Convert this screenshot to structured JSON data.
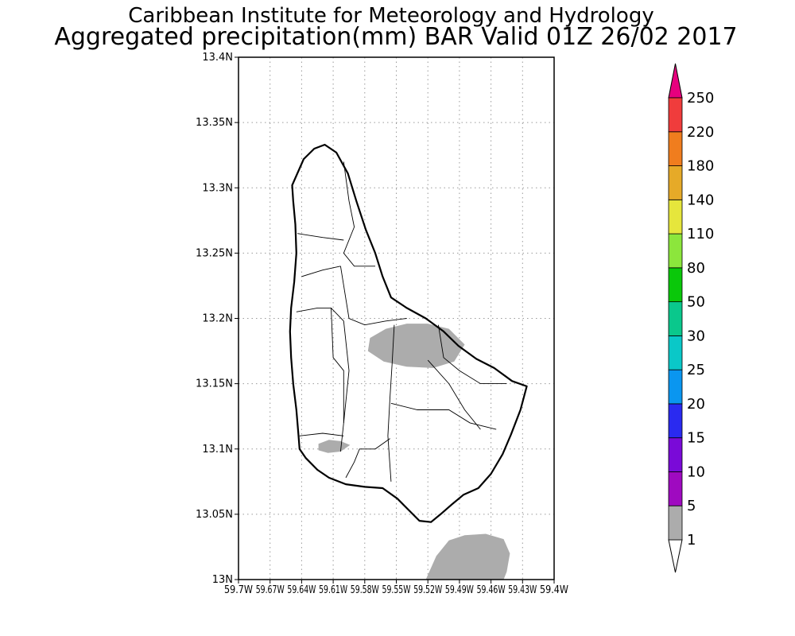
{
  "header": {
    "institution": "Caribbean Institute for Meteorology and Hydrology",
    "product": "Aggregated precipitation(mm) BAR Valid 01Z 26/02 2017"
  },
  "map": {
    "lon_range": [
      -59.7,
      -59.4
    ],
    "lat_range": [
      13.0,
      13.4
    ],
    "grid": true,
    "y_ticks": [
      {
        "value": 13.4,
        "label": "13.4N"
      },
      {
        "value": 13.35,
        "label": "13.35N"
      },
      {
        "value": 13.3,
        "label": "13.3N"
      },
      {
        "value": 13.25,
        "label": "13.25N"
      },
      {
        "value": 13.2,
        "label": "13.2N"
      },
      {
        "value": 13.15,
        "label": "13.15N"
      },
      {
        "value": 13.1,
        "label": "13.1N"
      },
      {
        "value": 13.05,
        "label": "13.05N"
      },
      {
        "value": 13.0,
        "label": "13N"
      }
    ],
    "x_ticks": [
      {
        "value": -59.7,
        "label": "59.7W"
      },
      {
        "value": -59.67,
        "label": "59.67W"
      },
      {
        "value": -59.64,
        "label": "59.64W"
      },
      {
        "value": -59.61,
        "label": "59.61W"
      },
      {
        "value": -59.58,
        "label": "59.58W"
      },
      {
        "value": -59.55,
        "label": "59.55W"
      },
      {
        "value": -59.52,
        "label": "59.52W"
      },
      {
        "value": -59.49,
        "label": "59.49W"
      },
      {
        "value": -59.46,
        "label": "59.46W"
      },
      {
        "value": -59.43,
        "label": "59.43W"
      },
      {
        "value": -59.4,
        "label": "59.4W"
      }
    ],
    "island_outline": [
      [
        -59.649,
        13.302
      ],
      [
        -59.638,
        13.322
      ],
      [
        -59.628,
        13.33
      ],
      [
        -59.618,
        13.333
      ],
      [
        -59.607,
        13.327
      ],
      [
        -59.596,
        13.311
      ],
      [
        -59.588,
        13.29
      ],
      [
        -59.579,
        13.268
      ],
      [
        -59.57,
        13.25
      ],
      [
        -59.563,
        13.232
      ],
      [
        -59.555,
        13.216
      ],
      [
        -59.54,
        13.208
      ],
      [
        -59.522,
        13.2
      ],
      [
        -59.505,
        13.19
      ],
      [
        -59.491,
        13.179
      ],
      [
        -59.474,
        13.169
      ],
      [
        -59.457,
        13.162
      ],
      [
        -59.44,
        13.152
      ],
      [
        -59.426,
        13.148
      ],
      [
        -59.432,
        13.13
      ],
      [
        -59.441,
        13.111
      ],
      [
        -59.449,
        13.096
      ],
      [
        -59.46,
        13.081
      ],
      [
        -59.472,
        13.07
      ],
      [
        -59.486,
        13.065
      ],
      [
        -59.498,
        13.057
      ],
      [
        -59.508,
        13.05
      ],
      [
        -59.517,
        13.044
      ],
      [
        -59.528,
        13.045
      ],
      [
        -59.538,
        13.053
      ],
      [
        -59.549,
        13.062
      ],
      [
        -59.563,
        13.07
      ],
      [
        -59.58,
        13.071
      ],
      [
        -59.598,
        13.073
      ],
      [
        -59.614,
        13.078
      ],
      [
        -59.625,
        13.084
      ],
      [
        -59.636,
        13.093
      ],
      [
        -59.642,
        13.1
      ],
      [
        -59.643,
        13.111
      ],
      [
        -59.645,
        13.13
      ],
      [
        -59.648,
        13.15
      ],
      [
        -59.65,
        13.17
      ],
      [
        -59.651,
        13.19
      ],
      [
        -59.65,
        13.208
      ],
      [
        -59.647,
        13.228
      ],
      [
        -59.645,
        13.25
      ],
      [
        -59.646,
        13.272
      ],
      [
        -59.648,
        13.29
      ]
    ],
    "parish_lines": [
      [
        [
          -59.6,
          13.32
        ],
        [
          -59.595,
          13.29
        ],
        [
          -59.59,
          13.27
        ],
        [
          -59.6,
          13.25
        ],
        [
          -59.59,
          13.24
        ],
        [
          -59.57,
          13.24
        ]
      ],
      [
        [
          -59.644,
          13.265
        ],
        [
          -59.62,
          13.262
        ],
        [
          -59.6,
          13.26
        ]
      ],
      [
        [
          -59.64,
          13.232
        ],
        [
          -59.62,
          13.237
        ],
        [
          -59.603,
          13.24
        ]
      ],
      [
        [
          -59.603,
          13.24
        ],
        [
          -59.595,
          13.2
        ],
        [
          -59.58,
          13.195
        ],
        [
          -59.56,
          13.198
        ],
        [
          -59.54,
          13.2
        ]
      ],
      [
        [
          -59.645,
          13.205
        ],
        [
          -59.625,
          13.208
        ],
        [
          -59.612,
          13.208
        ],
        [
          -59.6,
          13.198
        ]
      ],
      [
        [
          -59.612,
          13.208
        ],
        [
          -59.61,
          13.17
        ],
        [
          -59.6,
          13.16
        ],
        [
          -59.6,
          13.12
        ],
        [
          -59.603,
          13.098
        ]
      ],
      [
        [
          -59.6,
          13.198
        ],
        [
          -59.595,
          13.16
        ],
        [
          -59.6,
          13.12
        ]
      ],
      [
        [
          -59.552,
          13.195
        ],
        [
          -59.554,
          13.165
        ],
        [
          -59.556,
          13.14
        ],
        [
          -59.558,
          13.11
        ],
        [
          -59.555,
          13.075
        ]
      ],
      [
        [
          -59.555,
          13.135
        ],
        [
          -59.53,
          13.13
        ],
        [
          -59.5,
          13.13
        ],
        [
          -59.48,
          13.12
        ],
        [
          -59.455,
          13.115
        ]
      ],
      [
        [
          -59.51,
          13.195
        ],
        [
          -59.505,
          13.17
        ],
        [
          -59.49,
          13.16
        ],
        [
          -59.47,
          13.15
        ],
        [
          -59.445,
          13.15
        ]
      ],
      [
        [
          -59.52,
          13.168
        ],
        [
          -59.5,
          13.15
        ],
        [
          -59.485,
          13.13
        ],
        [
          -59.47,
          13.115
        ]
      ],
      [
        [
          -59.642,
          13.11
        ],
        [
          -59.62,
          13.112
        ],
        [
          -59.6,
          13.11
        ]
      ],
      [
        [
          -59.598,
          13.078
        ],
        [
          -59.59,
          13.09
        ],
        [
          -59.585,
          13.1
        ],
        [
          -59.57,
          13.1
        ],
        [
          -59.556,
          13.108
        ]
      ]
    ],
    "rain_areas": [
      {
        "name": "central-rain-area",
        "fill": "#acacac",
        "points": [
          [
            -59.575,
            13.185
          ],
          [
            -59.56,
            13.192
          ],
          [
            -59.54,
            13.196
          ],
          [
            -59.52,
            13.196
          ],
          [
            -59.5,
            13.192
          ],
          [
            -59.485,
            13.18
          ],
          [
            -59.495,
            13.167
          ],
          [
            -59.515,
            13.162
          ],
          [
            -59.54,
            13.163
          ],
          [
            -59.562,
            13.167
          ],
          [
            -59.577,
            13.175
          ]
        ]
      },
      {
        "name": "southwest-rain-area",
        "fill": "#acacac",
        "points": [
          [
            -59.624,
            13.104
          ],
          [
            -59.614,
            13.107
          ],
          [
            -59.603,
            13.106
          ],
          [
            -59.594,
            13.103
          ],
          [
            -59.603,
            13.098
          ],
          [
            -59.615,
            13.097
          ],
          [
            -59.624,
            13.099
          ]
        ]
      },
      {
        "name": "offshore-rain-area",
        "fill": "#acacac",
        "points": [
          [
            -59.522,
            13.0
          ],
          [
            -59.512,
            13.018
          ],
          [
            -59.5,
            13.03
          ],
          [
            -59.485,
            13.034
          ],
          [
            -59.465,
            13.035
          ],
          [
            -59.448,
            13.031
          ],
          [
            -59.442,
            13.02
          ],
          [
            -59.445,
            13.006
          ],
          [
            -59.448,
            13.0
          ]
        ]
      }
    ]
  },
  "colorbar": {
    "under_color": "#ffffff",
    "over_color": "#e6007e",
    "bins": [
      {
        "from": "1",
        "color": "#acacac"
      },
      {
        "from": "5",
        "color": "#9f0ac0"
      },
      {
        "from": "10",
        "color": "#7a0ad8"
      },
      {
        "from": "15",
        "color": "#2a2af0"
      },
      {
        "from": "20",
        "color": "#0a96f0"
      },
      {
        "from": "25",
        "color": "#0ac8c8"
      },
      {
        "from": "30",
        "color": "#0ac88c"
      },
      {
        "from": "50",
        "color": "#0ac80a"
      },
      {
        "from": "80",
        "color": "#8ce63c"
      },
      {
        "from": "110",
        "color": "#e6e63c"
      },
      {
        "from": "140",
        "color": "#e6aa28"
      },
      {
        "from": "180",
        "color": "#f07d1e"
      },
      {
        "from": "220",
        "color": "#f03c3c"
      }
    ],
    "top_label": "250"
  }
}
